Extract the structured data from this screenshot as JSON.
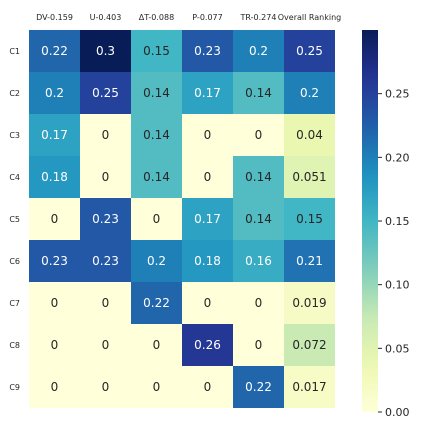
{
  "chart_data": {
    "type": "heatmap",
    "title": "",
    "xlabel": "",
    "ylabel": "",
    "x_categories": [
      "DV-0.159",
      "U-0.403",
      "ΔT-0.088",
      "P-0.077",
      "TR-0.274",
      "Overall Ranking"
    ],
    "y_categories": [
      "C1",
      "C2",
      "C3",
      "C4",
      "C5",
      "C6",
      "C7",
      "C8",
      "C9"
    ],
    "values": [
      [
        0.22,
        0.3,
        0.15,
        0.23,
        0.2,
        0.25
      ],
      [
        0.2,
        0.25,
        0.14,
        0.17,
        0.14,
        0.2
      ],
      [
        0.17,
        0,
        0.14,
        0,
        0,
        0.04
      ],
      [
        0.18,
        0,
        0.14,
        0,
        0.14,
        0.051
      ],
      [
        0,
        0.23,
        0,
        0.17,
        0.14,
        0.15
      ],
      [
        0.23,
        0.23,
        0.2,
        0.18,
        0.16,
        0.21
      ],
      [
        0,
        0,
        0.22,
        0,
        0,
        0.019
      ],
      [
        0,
        0,
        0,
        0.26,
        0,
        0.072
      ],
      [
        0,
        0,
        0,
        0,
        0.22,
        0.017
      ]
    ],
    "cell_labels": [
      [
        "0.22",
        "0.3",
        "0.15",
        "0.23",
        "0.2",
        "0.25"
      ],
      [
        "0.2",
        "0.25",
        "0.14",
        "0.17",
        "0.14",
        "0.2"
      ],
      [
        "0.17",
        "0",
        "0.14",
        "0",
        "0",
        "0.04"
      ],
      [
        "0.18",
        "0",
        "0.14",
        "0",
        "0.14",
        "0.051"
      ],
      [
        "0",
        "0.23",
        "0",
        "0.17",
        "0.14",
        "0.15"
      ],
      [
        "0.23",
        "0.23",
        "0.2",
        "0.18",
        "0.16",
        "0.21"
      ],
      [
        "0",
        "0",
        "0.22",
        "0",
        "0",
        "0.019"
      ],
      [
        "0",
        "0",
        "0",
        "0.26",
        "0",
        "0.072"
      ],
      [
        "0",
        "0",
        "0",
        "0",
        "0.22",
        "0.017"
      ]
    ],
    "colorbar": {
      "min": 0,
      "max": 0.3,
      "ticks": [
        0,
        0.05,
        0.1,
        0.15,
        0.2,
        0.25
      ],
      "tick_labels": [
        "0.00",
        "0.05",
        "0.10",
        "0.15",
        "0.20",
        "0.25"
      ],
      "colormap": "YlGnBu"
    },
    "grid": false,
    "legend": "colorbar-right"
  }
}
